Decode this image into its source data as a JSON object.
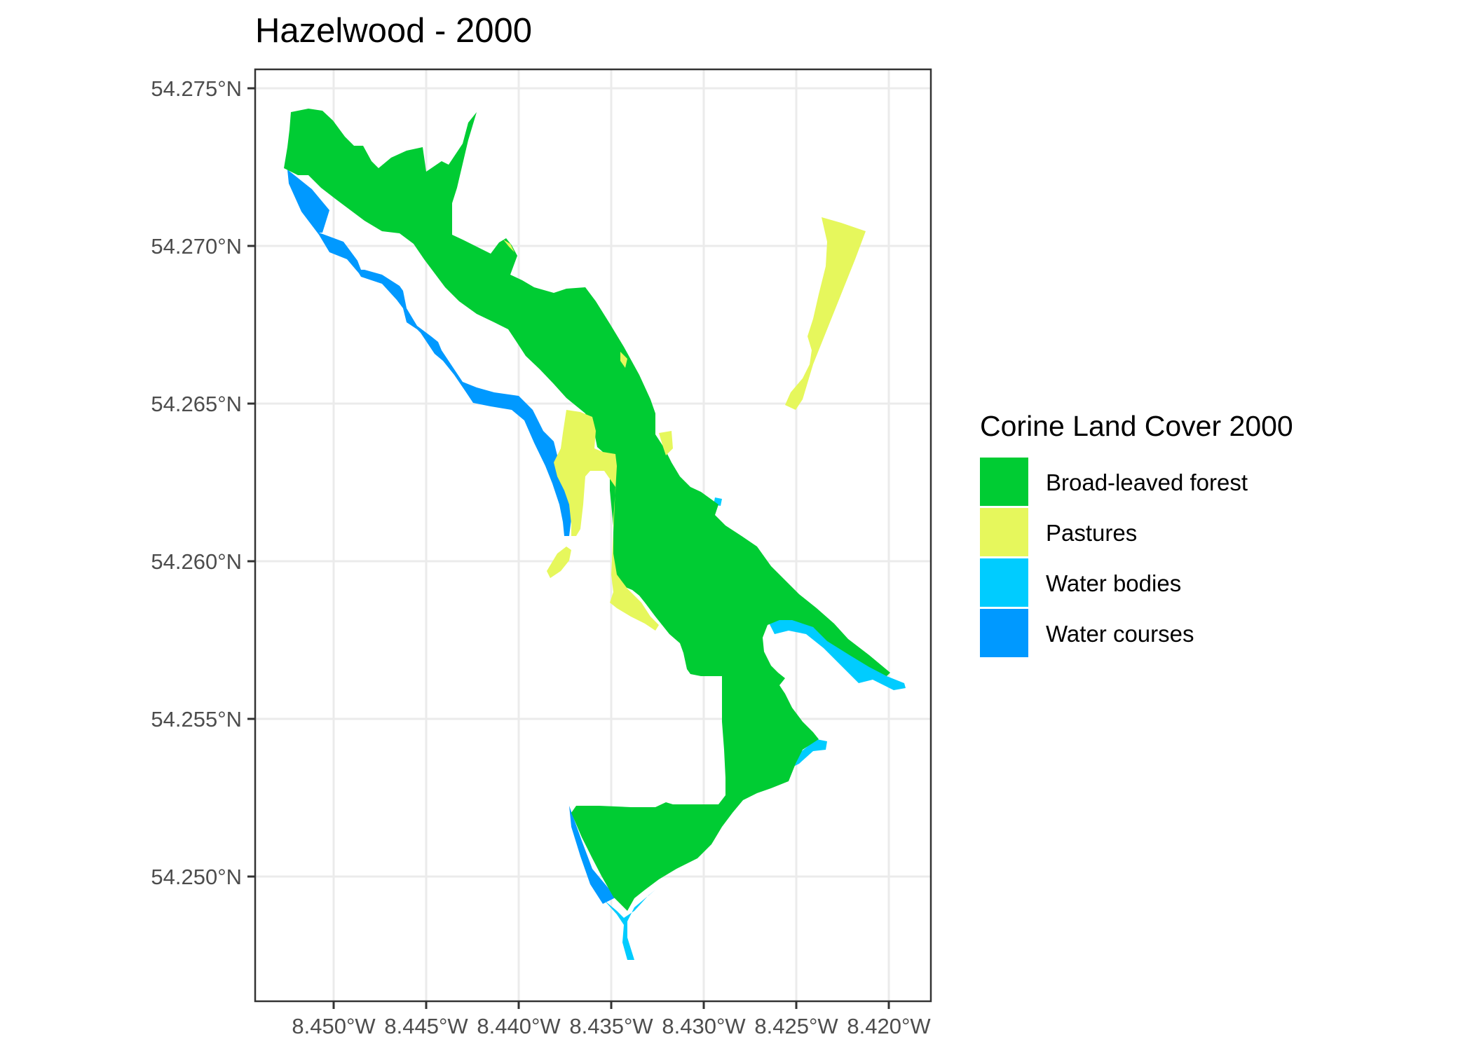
{
  "map": {
    "title": "Hazelwood - 2000",
    "y_ticks": [
      "54.275°N",
      "54.270°N",
      "54.265°N",
      "54.260°N",
      "54.255°N",
      "54.250°N"
    ],
    "x_ticks": [
      "8.450°W",
      "8.445°W",
      "8.440°W",
      "8.435°W",
      "8.430°W",
      "8.425°W",
      "8.420°W"
    ],
    "legend": {
      "title": "Corine Land Cover 2000",
      "items": [
        {
          "label": "Broad-leaved forest",
          "color": "#00cc33"
        },
        {
          "label": "Pastures",
          "color": "#e6f75c"
        },
        {
          "label": "Water bodies",
          "color": "#00ccff"
        },
        {
          "label": "Water courses",
          "color": "#0099ff"
        }
      ]
    }
  }
}
